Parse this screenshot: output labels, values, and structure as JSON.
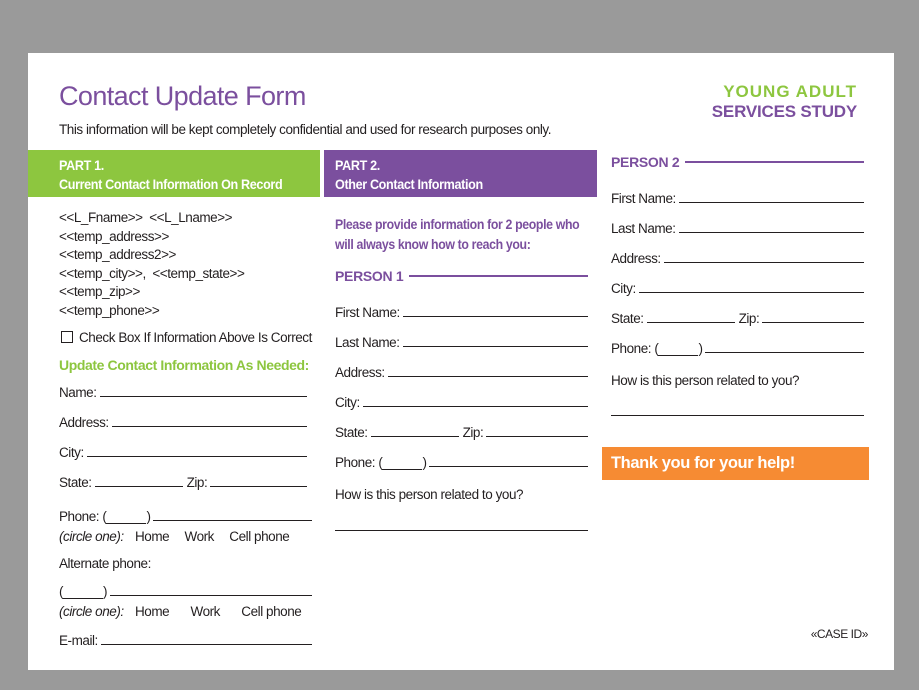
{
  "header": {
    "title": "Contact Update Form",
    "subtitle": "This information will be kept completely confidential and used for research purposes only.",
    "logo_line1": "YOUNG ADULT",
    "logo_line2": "SERVICES STUDY"
  },
  "colors": {
    "green": "#8dc63f",
    "purple": "#7b4f9e",
    "orange": "#f68b33"
  },
  "part1": {
    "heading": "PART 1.",
    "subheading": "Current Contact Information On Record",
    "record": [
      "<<L_Fname>>  <<L_Lname>>",
      "<<temp_address>>",
      "<<temp_address2>>",
      "<<temp_city>>,  <<temp_state>>",
      "<<temp_zip>>",
      "<<temp_phone>>"
    ],
    "checkbox_label": "Check Box If Information Above Is Correct",
    "update_heading": "Update Contact Information As Needed:",
    "name": "Name:",
    "address": "Address:",
    "city": "City:",
    "state": "State:",
    "zip": "Zip:",
    "phone": "Phone: (",
    "circle_one": "(circle one):",
    "home": "Home",
    "work": "Work",
    "cell": "Cell phone",
    "alt_phone": "Alternate phone:",
    "paren_open": "(",
    "paren_close": ")",
    "email": "E-mail:"
  },
  "part2": {
    "heading": "PART 2.",
    "subheading": "Other Contact Information",
    "instructions": "Please provide information for 2 people who will always know how to reach you:",
    "person1": {
      "heading": "PERSON 1",
      "first": "First Name:",
      "last": "Last Name:",
      "address": "Address:",
      "city": "City:",
      "state": "State:",
      "zip": "Zip:",
      "phone": "Phone: (",
      "related": "How is this person related to you?"
    },
    "person2": {
      "heading": "PERSON 2",
      "first": "First Name:",
      "last": "Last Name:",
      "address": "Address:",
      "city": "City:",
      "state": "State:",
      "zip": "Zip:",
      "phone": "Phone: (",
      "related": "How is this person related to you?"
    }
  },
  "footer": {
    "thanks": "Thank you for your help!",
    "case_id": "«CASE ID»"
  }
}
